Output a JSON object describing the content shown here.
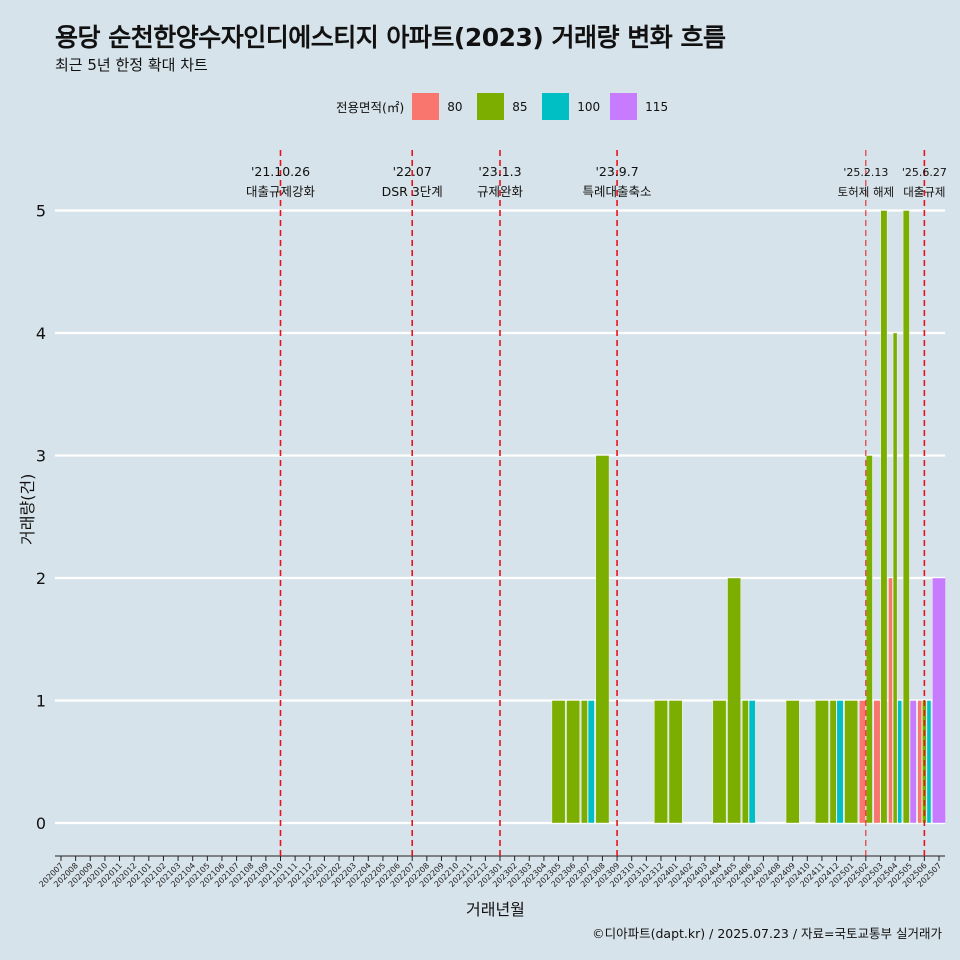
{
  "title": "용당 순천한양수자인디에스티지 아파트(2023) 거래량 변화 흐름",
  "subtitle": "최근 5년 한정 확대 차트",
  "caption": "©디아파트(dapt.kr) / 2025.07.23 / 자료=국토교통부 실거래가",
  "legend": {
    "title": "전용면적(㎡)",
    "items": [
      {
        "label": "80",
        "color": "#f8766d"
      },
      {
        "label": "85",
        "color": "#7cae00"
      },
      {
        "label": "100",
        "color": "#00bfc4"
      },
      {
        "label": "115",
        "color": "#c77cff"
      }
    ]
  },
  "chart_data": {
    "type": "bar",
    "xlabel": "거래년월",
    "ylabel": "거래량(건)",
    "ylim": [
      0,
      5
    ],
    "yticks": [
      0,
      1,
      2,
      3,
      4,
      5
    ],
    "grid": true,
    "legend_position": "top",
    "categories": [
      "202007",
      "202008",
      "202009",
      "202010",
      "202011",
      "202012",
      "202101",
      "202102",
      "202103",
      "202104",
      "202105",
      "202106",
      "202107",
      "202108",
      "202109",
      "202110",
      "202111",
      "202112",
      "202201",
      "202202",
      "202203",
      "202204",
      "202205",
      "202206",
      "202207",
      "202208",
      "202209",
      "202210",
      "202211",
      "202212",
      "202301",
      "202302",
      "202303",
      "202304",
      "202305",
      "202306",
      "202307",
      "202308",
      "202309",
      "202310",
      "202311",
      "202312",
      "202401",
      "202402",
      "202403",
      "202404",
      "202405",
      "202406",
      "202407",
      "202408",
      "202409",
      "202410",
      "202411",
      "202412",
      "202501",
      "202502",
      "202503",
      "202504",
      "202505",
      "202506",
      "202507"
    ],
    "series": [
      {
        "name": "80",
        "color": "#f8766d",
        "values": {
          "202502": 1,
          "202503": 1,
          "202504": 2,
          "202506": 1
        }
      },
      {
        "name": "85",
        "color": "#7cae00",
        "values": {
          "202305": 1,
          "202306": 1,
          "202307": 1,
          "202308": 3,
          "202312": 1,
          "202401": 1,
          "202404": 1,
          "202405": 2,
          "202406": 1,
          "202409": 1,
          "202411": 1,
          "202412": 1,
          "202501": 1,
          "202502": 3,
          "202503": 5,
          "202504": 4,
          "202505": 5,
          "202506": 1
        }
      },
      {
        "name": "100",
        "color": "#00bfc4",
        "values": {
          "202307": 1,
          "202406": 1,
          "202412": 1,
          "202504": 1,
          "202506": 1
        }
      },
      {
        "name": "115",
        "color": "#c77cff",
        "values": {
          "202505": 1,
          "202507": 2
        }
      }
    ],
    "annotations": [
      {
        "date": "'21.10.26",
        "text": "대출규제강화",
        "x": "202110"
      },
      {
        "date": "'22.07",
        "text": "DSR 3단계",
        "x": "202207"
      },
      {
        "date": "'23.1.3",
        "text": "규제완화",
        "x": "202301"
      },
      {
        "date": "'23.9.7",
        "text": "특례대출축소",
        "x": "202309"
      },
      {
        "date": "'25.2.13",
        "text": "토허제 해제",
        "x": "202502"
      },
      {
        "date": "'25.6.27",
        "text": "대출규제",
        "x": "202506"
      }
    ]
  }
}
